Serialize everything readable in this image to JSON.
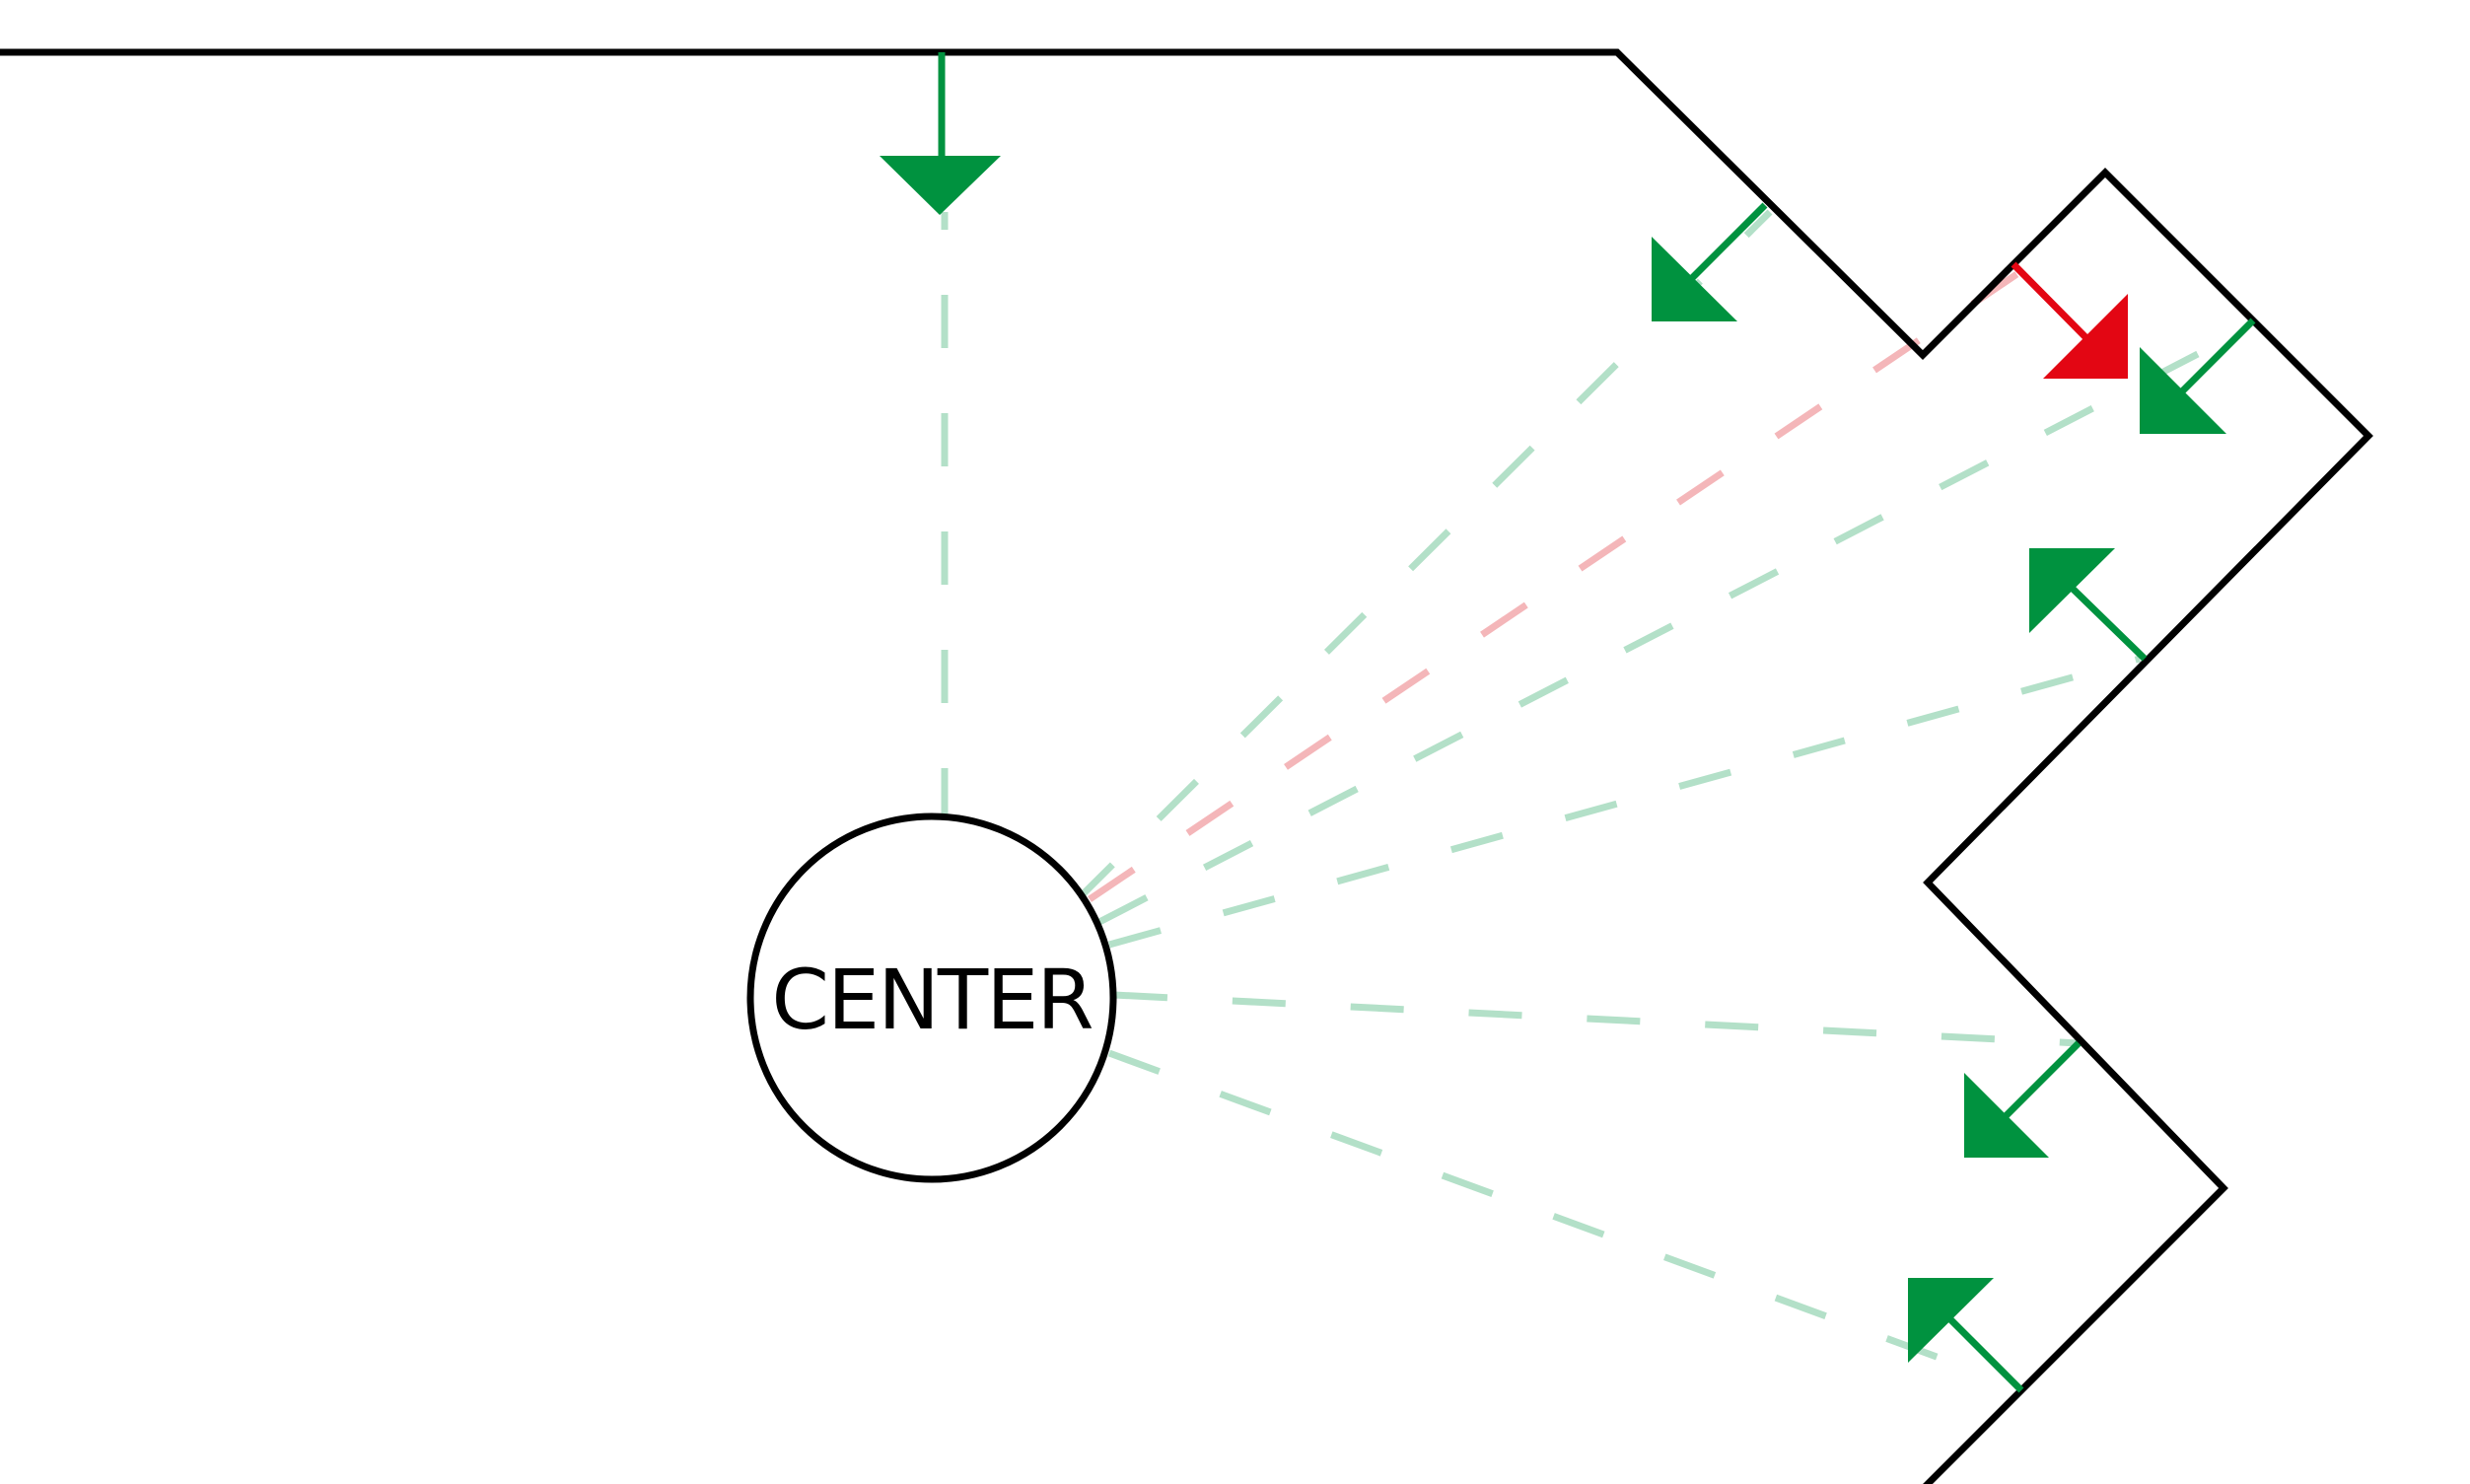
{
  "center": {
    "label": "CENTER"
  },
  "colors": {
    "wall": "#000000",
    "visible_normal": "#00923f",
    "visible_ray": "#b3e0c8",
    "hidden_normal": "#e30613",
    "hidden_ray": "#f4b6b9"
  },
  "normals": [
    {
      "facing": "toward-center",
      "color": "visible_normal"
    },
    {
      "facing": "toward-center",
      "color": "visible_normal"
    },
    {
      "facing": "away-from-center",
      "color": "hidden_normal"
    },
    {
      "facing": "toward-center",
      "color": "visible_normal"
    },
    {
      "facing": "toward-center",
      "color": "visible_normal"
    },
    {
      "facing": "toward-center",
      "color": "visible_normal"
    },
    {
      "facing": "toward-center",
      "color": "visible_normal"
    }
  ]
}
